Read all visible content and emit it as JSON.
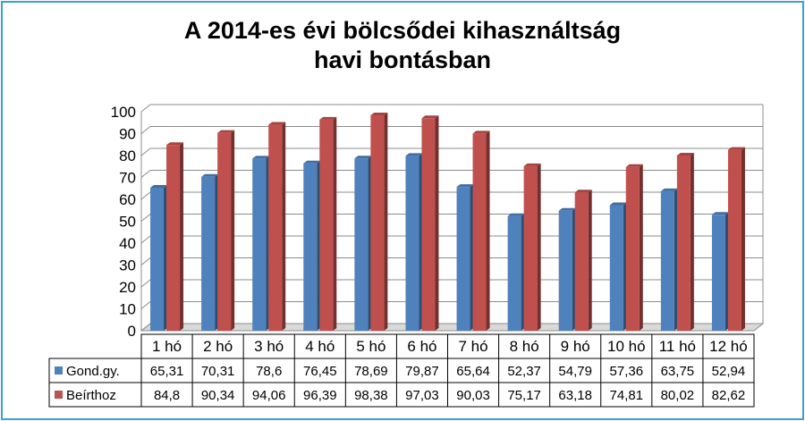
{
  "colors": {
    "series1": "#4f81bd",
    "series2": "#c0504d",
    "frame": "#3e9fd1"
  },
  "chart_data": {
    "type": "bar",
    "title_line1": "A 2014-es évi bölcsődei kihasználtság",
    "title_line2": "havi bontásban",
    "categories": [
      "1 hó",
      "2 hó",
      "3 hó",
      "4 hó",
      "5 hó",
      "6 hó",
      "7 hó",
      "8 hó",
      "9 hó",
      "10 hó",
      "11 hó",
      "12 hó"
    ],
    "series": [
      {
        "name": "Gond.gy.",
        "values": [
          65.31,
          70.31,
          78.6,
          76.45,
          78.69,
          79.87,
          65.64,
          52.37,
          54.79,
          57.36,
          63.75,
          52.94
        ],
        "labels": [
          "65,31",
          "70,31",
          "78,6",
          "76,45",
          "78,69",
          "79,87",
          "65,64",
          "52,37",
          "54,79",
          "57,36",
          "63,75",
          "52,94"
        ]
      },
      {
        "name": "Beírthoz",
        "values": [
          84.8,
          90.34,
          94.06,
          96.39,
          98.38,
          97.03,
          90.03,
          75.17,
          63.18,
          74.81,
          80.02,
          82.62
        ],
        "labels": [
          "84,8",
          "90,34",
          "94,06",
          "96,39",
          "98,38",
          "97,03",
          "90,03",
          "75,17",
          "63,18",
          "74,81",
          "80,02",
          "82,62"
        ]
      }
    ],
    "ylim": [
      0,
      100
    ],
    "yticks": [
      "0",
      "10",
      "20",
      "30",
      "40",
      "50",
      "60",
      "70",
      "80",
      "90",
      "100"
    ],
    "grid": true,
    "legend": "data table"
  }
}
